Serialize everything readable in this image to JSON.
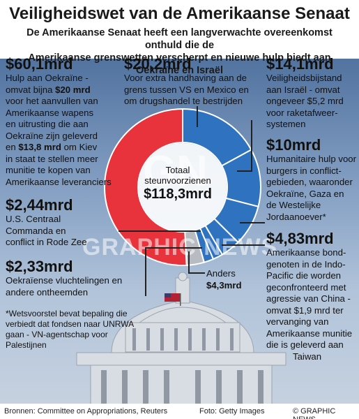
{
  "header": {
    "title": "Veiligheidswet van de Amerikaanse Senaat",
    "subtitle_line1": "De Amerikaanse Senaat heeft een langverwachte overeenkomst onthuld die de",
    "subtitle_line2": "Amerikaanse grenswetten verscherpt en nieuwe hulp biedt aan Oekraïne en Israël"
  },
  "center": {
    "label_line1": "Totaal",
    "label_line2": "steunvoorzienen",
    "total": "$118,3mrd"
  },
  "blocks": {
    "ukraine": {
      "amount": "$60,1mrd",
      "l1": "Hulp aan Oekraïne -",
      "l2a": "omvat bijna ",
      "l2b": "$20 mrd",
      "l3": "voor het aanvullen van",
      "l4": "Amerikaanse wapens",
      "l5": "en uitrusting die aan",
      "l6": "Oekraïne zijn geleverd",
      "l7a": "en ",
      "l7b": "$13,8 mrd",
      "l7c": " om Kiev",
      "l8": "in staat te stellen meer",
      "l9": "munitie te kopen van",
      "l10": "Amerikaanse leveranciers"
    },
    "border": {
      "amount": "$20,2mrd",
      "l1": "Voor extra handhaving aan de",
      "l2": "grens tussen VS en Mexico en",
      "l3": "om drugshandel te bestrijden"
    },
    "israel": {
      "amount": "$14,1mrd",
      "l1": "Veiligheidsbijstand",
      "l2": "aan Israël - omvat",
      "l3": "ongeveer $5,2 mrd",
      "l4": "voor raketafweer-",
      "l5": "systemen"
    },
    "humanitarian": {
      "amount": "$10mrd",
      "l1": "Humanitaire hulp voor",
      "l2": "burgers in conflict-",
      "l3": "gebieden, waaronder",
      "l4": "Oekraïne, Gaza en",
      "l5": "de Westelijke",
      "l6": "Jordaanoever*"
    },
    "indopacific": {
      "amount": "$4,83mrd",
      "l1": "Amerikaanse bond-",
      "l2": "genoten in de Indo-",
      "l3": "Pacific die worden",
      "l4": "geconfronteerd met",
      "l5": "agressie van China -",
      "l6": "omvat $1,9 mrd ter",
      "l7": "vervanging van",
      "l8": "Amerikaanse munitie",
      "l9": "die is geleverd aan",
      "l10": "Taiwan"
    },
    "centcom": {
      "amount": "$2,44mrd",
      "l1": "U.S. Centraal",
      "l2": "Commanda en",
      "l3": "conflict in Rode Zee"
    },
    "refugees": {
      "amount": "$2,33mrd",
      "l1": "Oekraïense vluchtelingen en",
      "l2": "andere ontheemden"
    },
    "other": {
      "l1": "Anders",
      "amount": "$4,3mrd"
    }
  },
  "footnote": {
    "l1": "*Wetsvoorstel bevat bepaling die",
    "l2": "verbiedt dat fondsen naar UNRWA",
    "l3": "gaan - VN-agentschap voor",
    "l4": "Palestijnen"
  },
  "watermark": {
    "logo": "GN",
    "text": "GRAPHIC NEWS"
  },
  "footer": {
    "sources": "Bronnen: Committee on Appropriations, Reuters",
    "photo": "Foto: Getty Images",
    "credit": "© GRAPHIC NEWS"
  },
  "chart_data": {
    "type": "pie",
    "title": "",
    "total": 118.3,
    "unit": "mrd $",
    "slices": [
      {
        "label": "Hulp aan Oekraïne",
        "value": 60.1,
        "color": "#e8323c"
      },
      {
        "label": "Grens VS-Mexico",
        "value": 20.2,
        "color": "#2f73c0"
      },
      {
        "label": "Israël",
        "value": 14.1,
        "color": "#2f73c0"
      },
      {
        "label": "Humanitaire hulp",
        "value": 10.0,
        "color": "#2f73c0"
      },
      {
        "label": "Indo-Pacific",
        "value": 4.83,
        "color": "#2f73c0"
      },
      {
        "label": "U.S. Centraal Commanda",
        "value": 2.44,
        "color": "#2f73c0"
      },
      {
        "label": "Oekraïense vluchtelingen",
        "value": 2.33,
        "color": "#2f73c0"
      },
      {
        "label": "Anders",
        "value": 4.3,
        "color": "#b8bcc2"
      }
    ]
  }
}
